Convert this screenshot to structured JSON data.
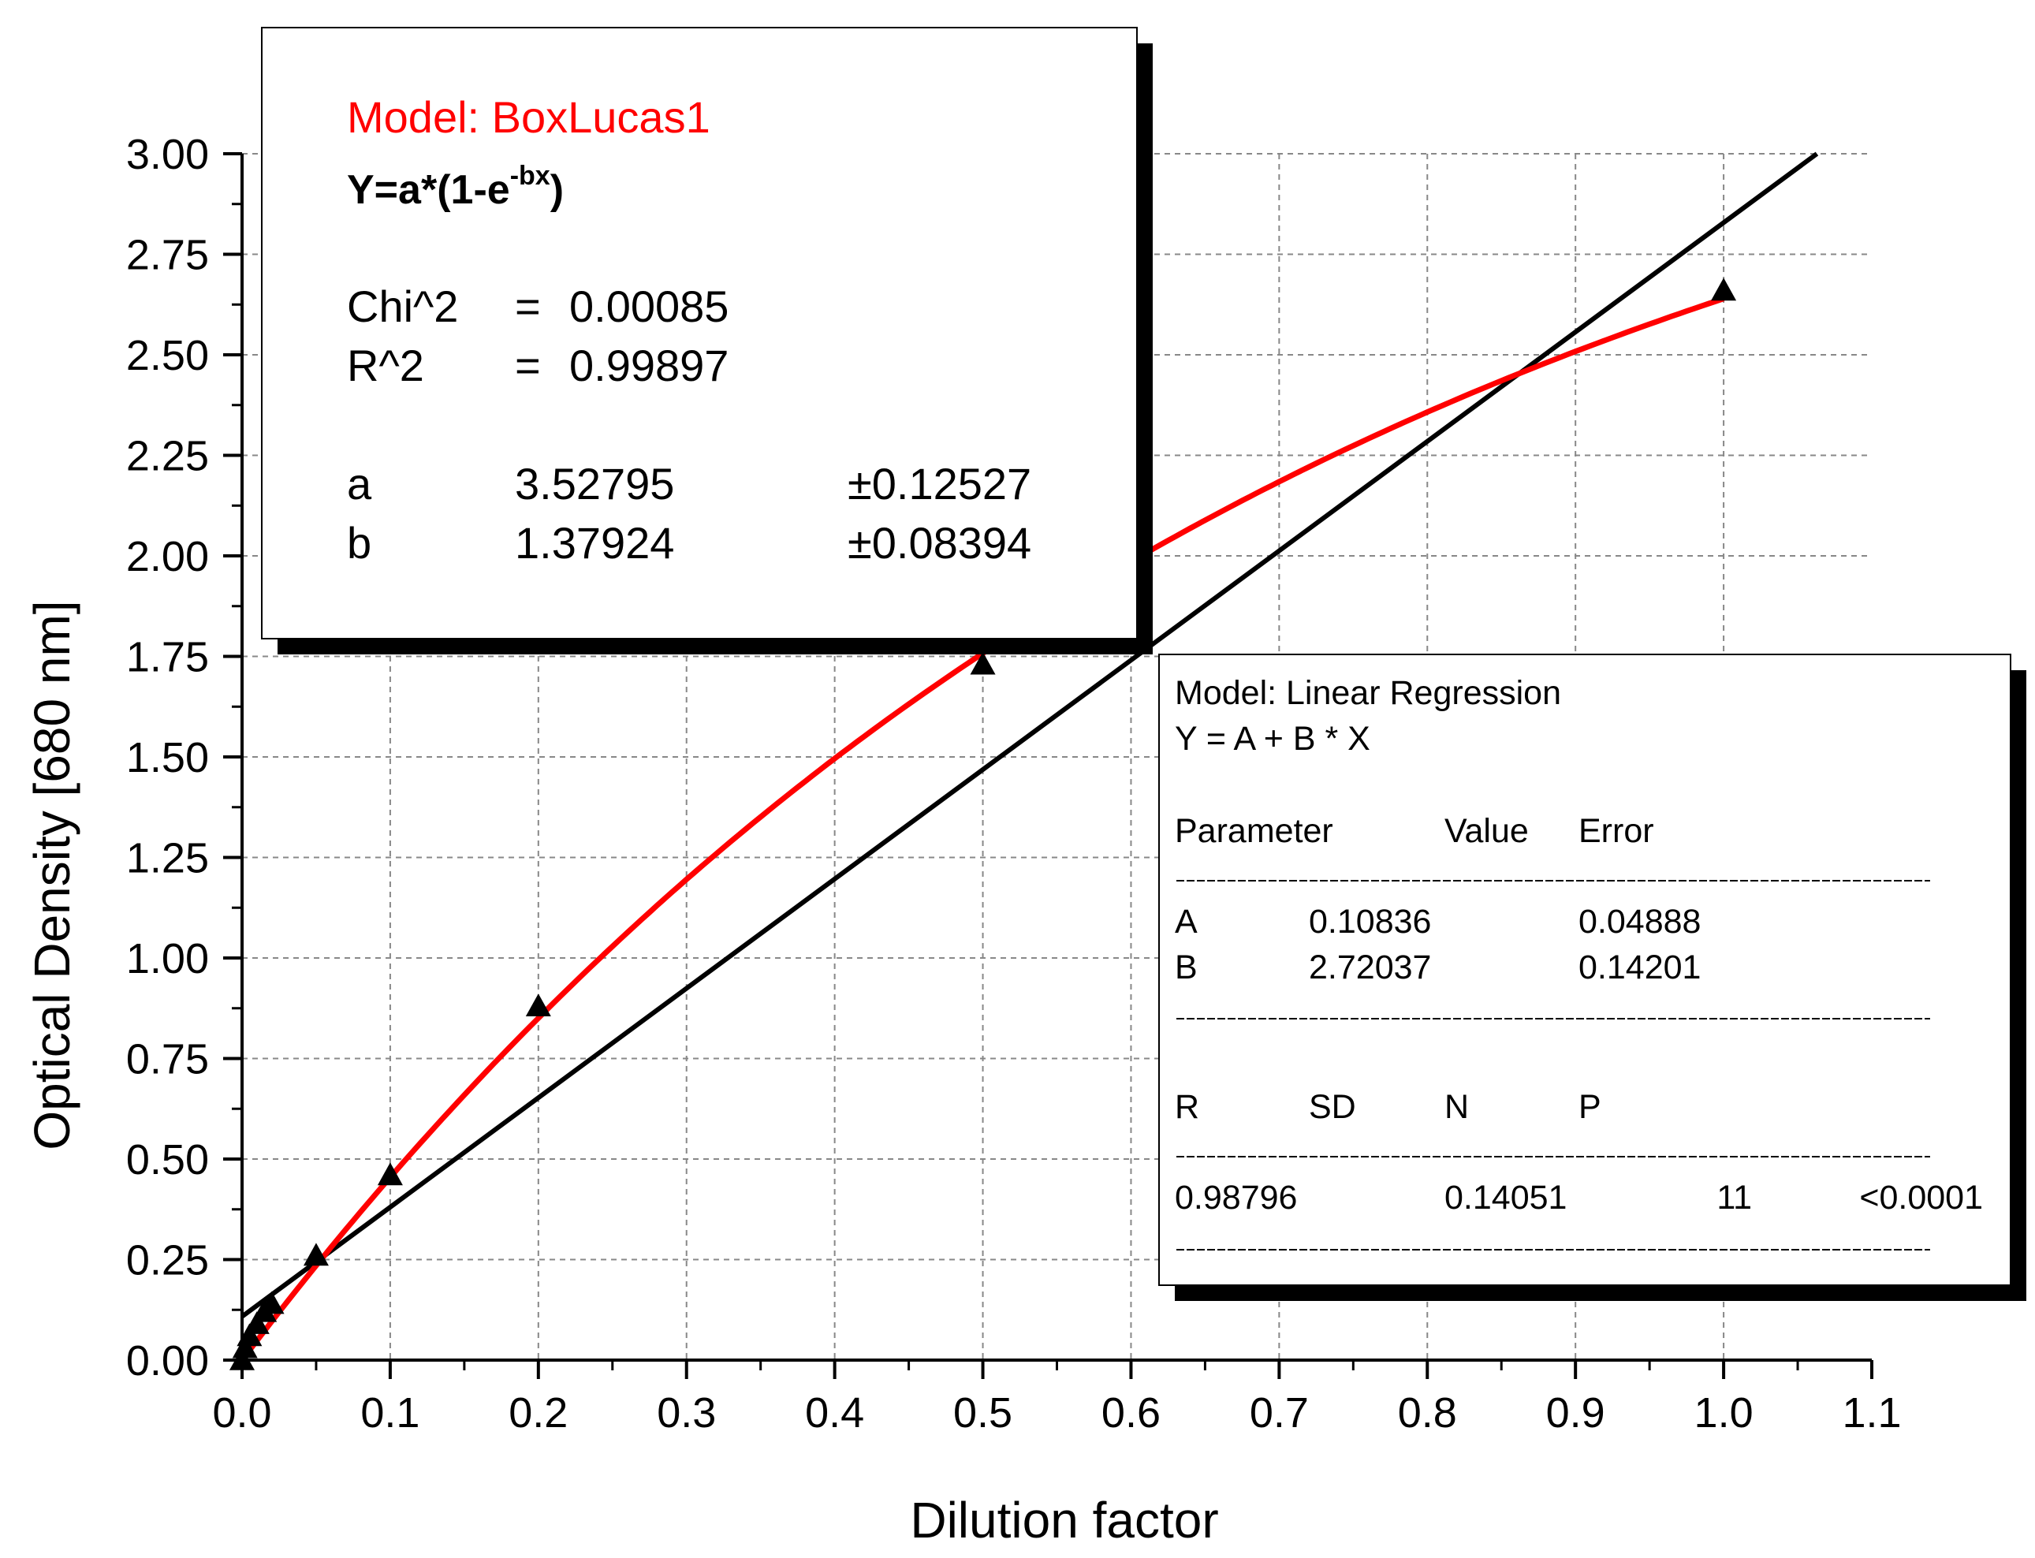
{
  "chart_data": {
    "type": "scatter",
    "xlabel": "Dilution factor",
    "ylabel": "Optical Density [680 nm]",
    "xlim": [
      0,
      1.1
    ],
    "ylim": [
      0,
      3.0
    ],
    "xticks": [
      "0.0",
      "0.1",
      "0.2",
      "0.3",
      "0.4",
      "0.5",
      "0.6",
      "0.7",
      "0.8",
      "0.9",
      "1.0",
      "1.1"
    ],
    "yticks": [
      "0.00",
      "0.25",
      "0.50",
      "0.75",
      "1.00",
      "1.25",
      "1.50",
      "1.75",
      "2.00",
      "2.25",
      "2.50",
      "2.75",
      "3.00"
    ],
    "grid": true,
    "points": [
      {
        "x": 0.0,
        "y": 0.0
      },
      {
        "x": 0.002,
        "y": 0.03
      },
      {
        "x": 0.005,
        "y": 0.06
      },
      {
        "x": 0.01,
        "y": 0.09
      },
      {
        "x": 0.015,
        "y": 0.12
      },
      {
        "x": 0.02,
        "y": 0.14
      },
      {
        "x": 0.05,
        "y": 0.26
      },
      {
        "x": 0.1,
        "y": 0.46
      },
      {
        "x": 0.2,
        "y": 0.88
      },
      {
        "x": 0.5,
        "y": 1.73
      },
      {
        "x": 1.0,
        "y": 2.66
      }
    ],
    "boxlucas": {
      "a": 3.52795,
      "b": 1.37924,
      "color": "#ff0000"
    },
    "linear": {
      "A": 0.10836,
      "B": 2.72037,
      "color": "#000000"
    }
  },
  "boxlucas_box": {
    "model": "Model: BoxLucas1",
    "eq_main": "Y=a*(1-e",
    "eq_sup": "-bx",
    "eq_end": ")",
    "chi_label": "Chi^2",
    "chi_eq": "=",
    "chi_value": "0.00085",
    "r2_label": "R^2",
    "r2_eq": "=",
    "r2_value": "0.99897",
    "a_label": "a",
    "a_value": "3.52795",
    "a_err": "±0.12527",
    "b_label": "b",
    "b_value": "1.37924",
    "b_err": "±0.08394"
  },
  "linear_box": {
    "model": "Model: Linear Regression",
    "equation": "Y = A + B * X",
    "h_param": "Parameter",
    "h_value": "Value",
    "h_error": "Error",
    "A_label": "A",
    "A_value": "0.10836",
    "A_err": "0.04888",
    "B_label": "B",
    "B_value": "2.72037",
    "B_err": "0.14201",
    "h_R": "R",
    "h_SD": "SD",
    "h_N": "N",
    "h_P": "P",
    "R": "0.98796",
    "SD": "0.14051",
    "N": "11",
    "P": "<0.0001"
  }
}
